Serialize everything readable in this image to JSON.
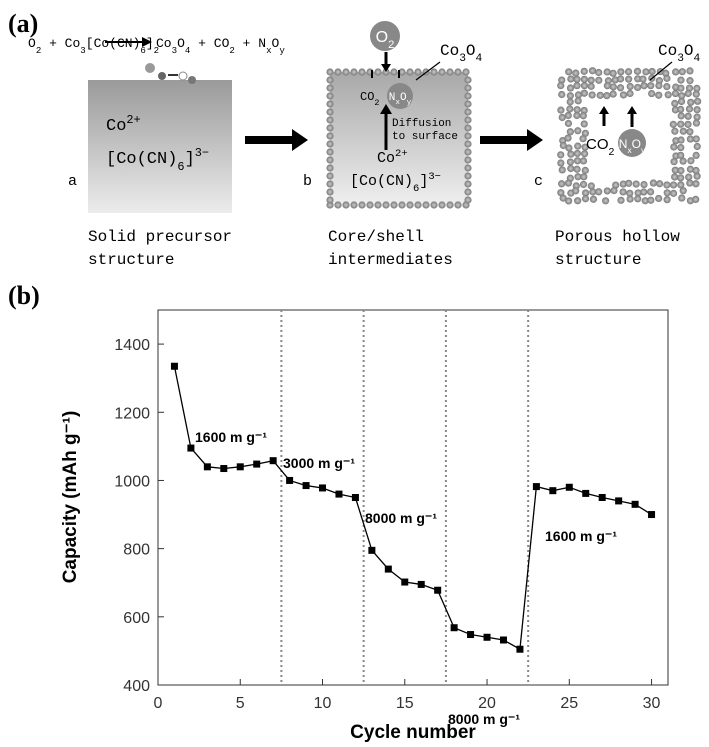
{
  "panels": [
    "(a)",
    "(b)"
  ],
  "diagram": {
    "equation": {
      "left": [
        "O",
        "2",
        " + Co",
        "3",
        "[Co(CN)",
        "6",
        "]",
        "2"
      ],
      "right": [
        "Co",
        "3",
        "O",
        "4",
        " + CO",
        "2",
        " + N",
        "x",
        "O",
        "y"
      ]
    },
    "precursor": {
      "ion": [
        "Co",
        "2+"
      ],
      "complex": [
        "[Co(CN)",
        "6",
        "]",
        "3−"
      ],
      "label": "a",
      "caption": [
        "Solid precursor",
        "structure"
      ]
    },
    "intermediate": {
      "gas": [
        "O",
        "2"
      ],
      "shell": [
        "Co",
        "3",
        "O",
        "4"
      ],
      "co2": [
        "CO",
        "2"
      ],
      "nxoy": [
        "N",
        "x",
        "O",
        "y"
      ],
      "diffusion": [
        "Diffusion",
        "to surface"
      ],
      "ion": [
        "Co",
        "2+"
      ],
      "complex": [
        "[Co(CN)",
        "6",
        "]",
        "3−"
      ],
      "label": "b",
      "caption": [
        "Core/shell",
        "intermediates"
      ]
    },
    "hollow": {
      "shell": [
        "Co",
        "3",
        "O",
        "4"
      ],
      "co2": [
        "CO",
        "2"
      ],
      "nxoy": [
        "N",
        "x",
        "O",
        "y"
      ],
      "label": "c",
      "caption": [
        "Porous hollow",
        "structure"
      ]
    }
  },
  "chart_data": {
    "type": "line",
    "x_label": "Cycle number",
    "y_label": "Capacity (mAh g⁻¹)",
    "x": [
      1,
      2,
      3,
      4,
      5,
      6,
      7,
      8,
      9,
      10,
      11,
      12,
      13,
      14,
      15,
      16,
      17,
      18,
      19,
      20,
      21,
      22,
      23,
      24,
      25,
      26,
      27,
      28,
      29,
      30
    ],
    "series": [
      {
        "color": "#000000",
        "values": [
          1335,
          1095,
          1040,
          1035,
          1040,
          1048,
          1058,
          1000,
          985,
          978,
          960,
          950,
          795,
          740,
          702,
          695,
          678,
          568,
          548,
          540,
          532,
          505,
          982,
          970,
          980,
          962,
          950,
          940,
          930,
          900
        ]
      }
    ],
    "xlim": [
      0,
      31
    ],
    "ylim": [
      400,
      1500
    ],
    "xticks": [
      0,
      5,
      10,
      15,
      20,
      25,
      30
    ],
    "yticks": [
      400,
      600,
      800,
      1000,
      1200,
      1400
    ],
    "dividers": [
      7.5,
      12.5,
      17.5,
      22.5
    ],
    "annotations": [
      "1600 m g⁻¹",
      "3000 m g⁻¹",
      "8000 m g⁻¹",
      "8000 m g⁻¹",
      "1600 m g⁻¹"
    ]
  }
}
